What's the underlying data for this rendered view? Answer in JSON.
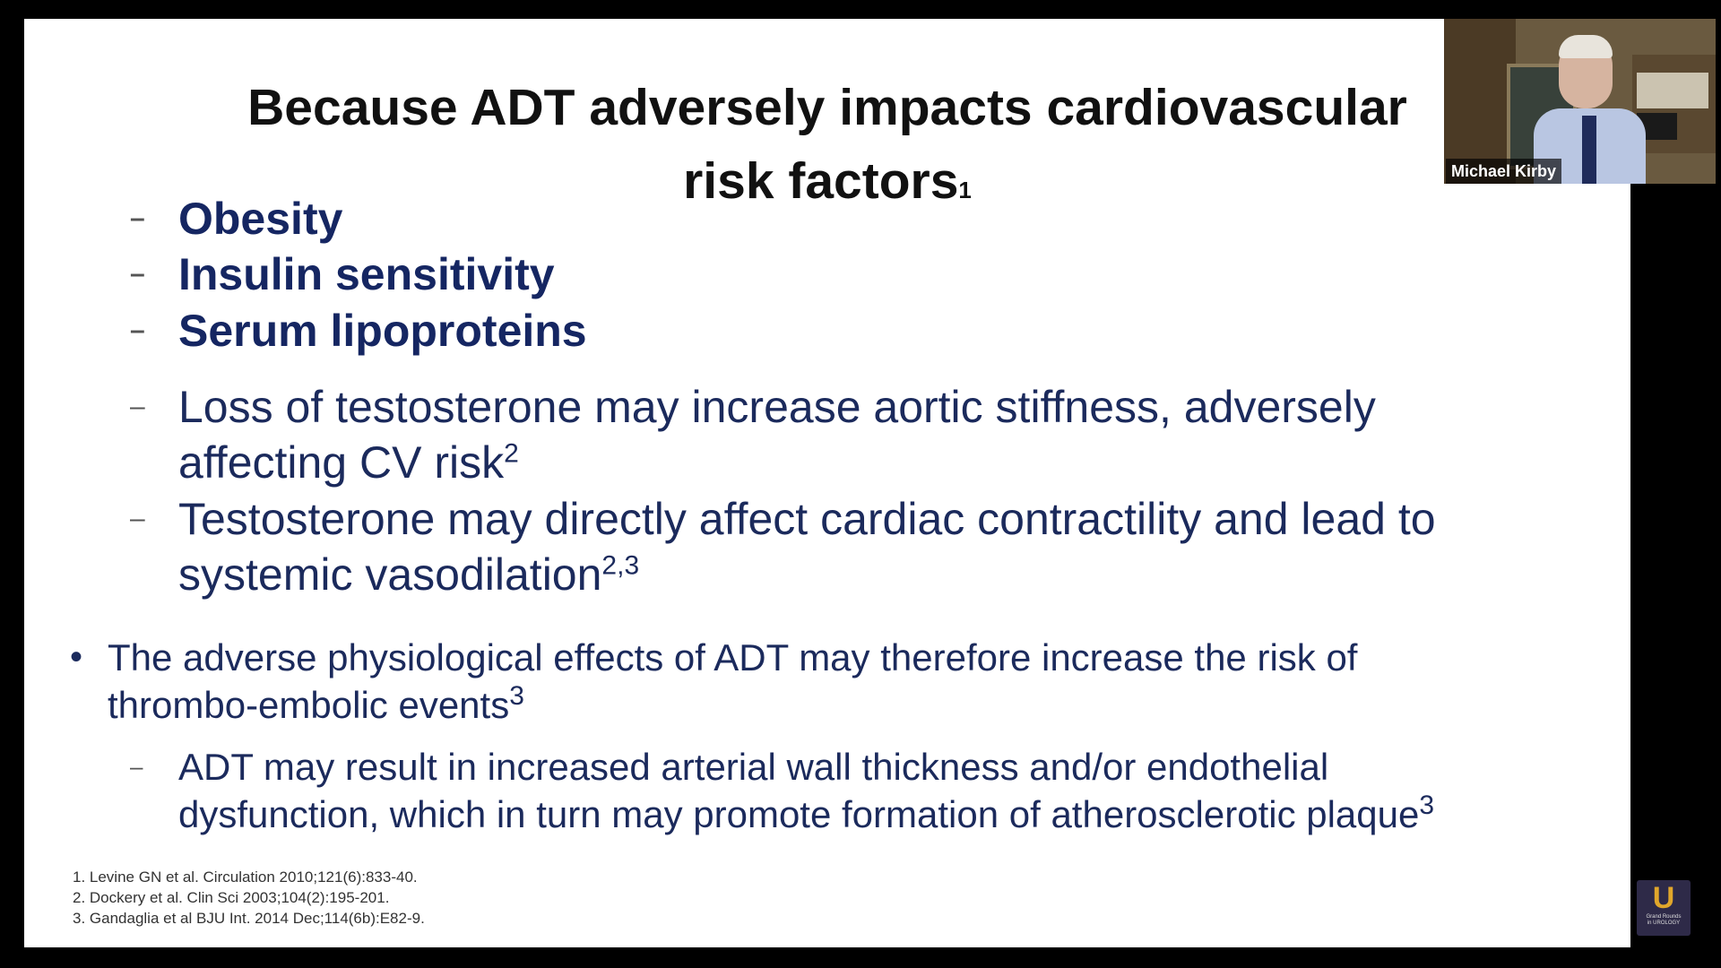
{
  "slide": {
    "title_line1": "Because ADT adversely impacts cardiovascular",
    "title_line2": "risk factors",
    "title_ref": "1",
    "sub_items": [
      {
        "dash": "–",
        "text": "Obesity"
      },
      {
        "dash": "–",
        "text": "Insulin sensitivity"
      },
      {
        "dash": "–",
        "text": "Serum lipoproteins"
      },
      {
        "dash": "–",
        "line1": "Loss of testosterone may increase aortic stiffness, adversely",
        "line2": "affecting CV risk",
        "ref": "2"
      },
      {
        "dash": "–",
        "line1": "Testosterone may directly affect cardiac contractility and lead to",
        "line2": "systemic vasodilation",
        "ref": "2,3"
      }
    ],
    "bullet": {
      "symbol": "•",
      "line1": "The adverse physiological effects of ADT may therefore increase the risk of",
      "line2": "thrombo-embolic events",
      "ref": "3"
    },
    "bullet_sub": {
      "dash": "–",
      "line1": "ADT may result in increased arterial wall thickness and/or endothelial",
      "line2": "dysfunction, which in turn may promote formation of atherosclerotic plaque",
      "ref": "3"
    },
    "references": [
      "1. Levine GN et al. Circulation 2010;121(6):833-40.",
      "2. Dockery et al. Clin Sci 2003;104(2):195-201.",
      "3. Gandaglia et al BJU Int. 2014 Dec;114(6b):E82-9."
    ]
  },
  "logo": {
    "letter": "U",
    "text_line1": "Grand Rounds",
    "text_line2": "in UROLOGY"
  },
  "video": {
    "participant_name": "Michael Kirby"
  }
}
